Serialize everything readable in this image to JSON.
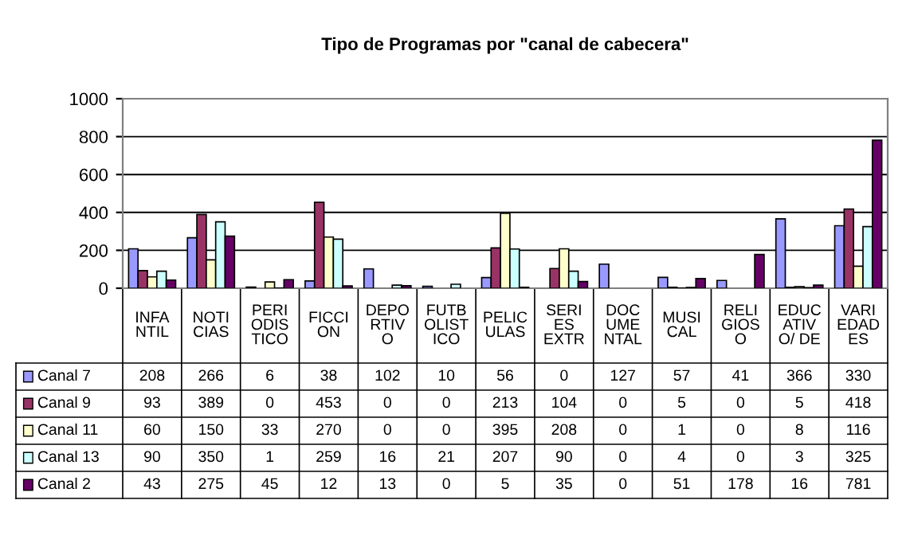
{
  "chart_data": {
    "type": "bar",
    "title": "Tipo de Programas por \"canal de cabecera\"",
    "categories": [
      "INFA\nNTIL",
      "NOTI\nCIAS",
      "PERI\nODIS\nTICO",
      "FICCI\nON",
      "DEPO\nRTIV\nO",
      "FUTB\nOLIST\nICO",
      "PELIC\nULAS",
      "SERI\nES\nEXTR",
      "DOC\nUME\nNTAL",
      "MUSI\nCAL",
      "RELI\nGIOS\nO",
      "EDUC\nATIV\nO/ DE",
      "VARI\nEDAD\nES"
    ],
    "series": [
      {
        "name": "Canal 7",
        "color": "#9999ff",
        "values": [
          208,
          266,
          6,
          38,
          102,
          10,
          56,
          0,
          127,
          57,
          41,
          366,
          330
        ]
      },
      {
        "name": "Canal 9",
        "color": "#993366",
        "values": [
          93,
          389,
          0,
          453,
          0,
          0,
          213,
          104,
          0,
          5,
          0,
          5,
          418
        ]
      },
      {
        "name": "Canal 11",
        "color": "#ffffcc",
        "values": [
          60,
          150,
          33,
          270,
          0,
          0,
          395,
          208,
          0,
          1,
          0,
          8,
          116
        ]
      },
      {
        "name": "Canal 13",
        "color": "#ccffff",
        "values": [
          90,
          350,
          1,
          259,
          16,
          21,
          207,
          90,
          0,
          4,
          0,
          3,
          325
        ]
      },
      {
        "name": "Canal 2",
        "color": "#660066",
        "values": [
          43,
          275,
          45,
          12,
          13,
          0,
          5,
          35,
          0,
          51,
          178,
          16,
          781
        ]
      }
    ],
    "ylim": [
      0,
      1000
    ],
    "yticks": [
      0,
      200,
      400,
      600,
      800,
      1000
    ],
    "grid": "y",
    "legend": "bottom",
    "data_labels": true
  }
}
